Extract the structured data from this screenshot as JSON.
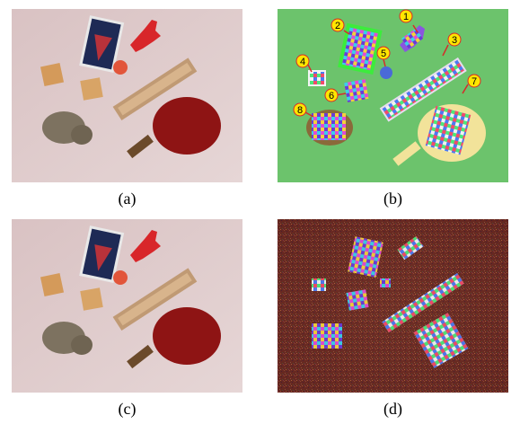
{
  "captions": [
    "(a)",
    "(b)",
    "(c)",
    "(d)"
  ],
  "markers": [
    "1",
    "2",
    "3",
    "4",
    "5",
    "6",
    "7",
    "8"
  ],
  "colors": {
    "photo_bg": "#ddc6c6",
    "segment_bg": "#6cc36c",
    "label_disc": "#ffe600",
    "noise_bg": "#6e2a22"
  }
}
